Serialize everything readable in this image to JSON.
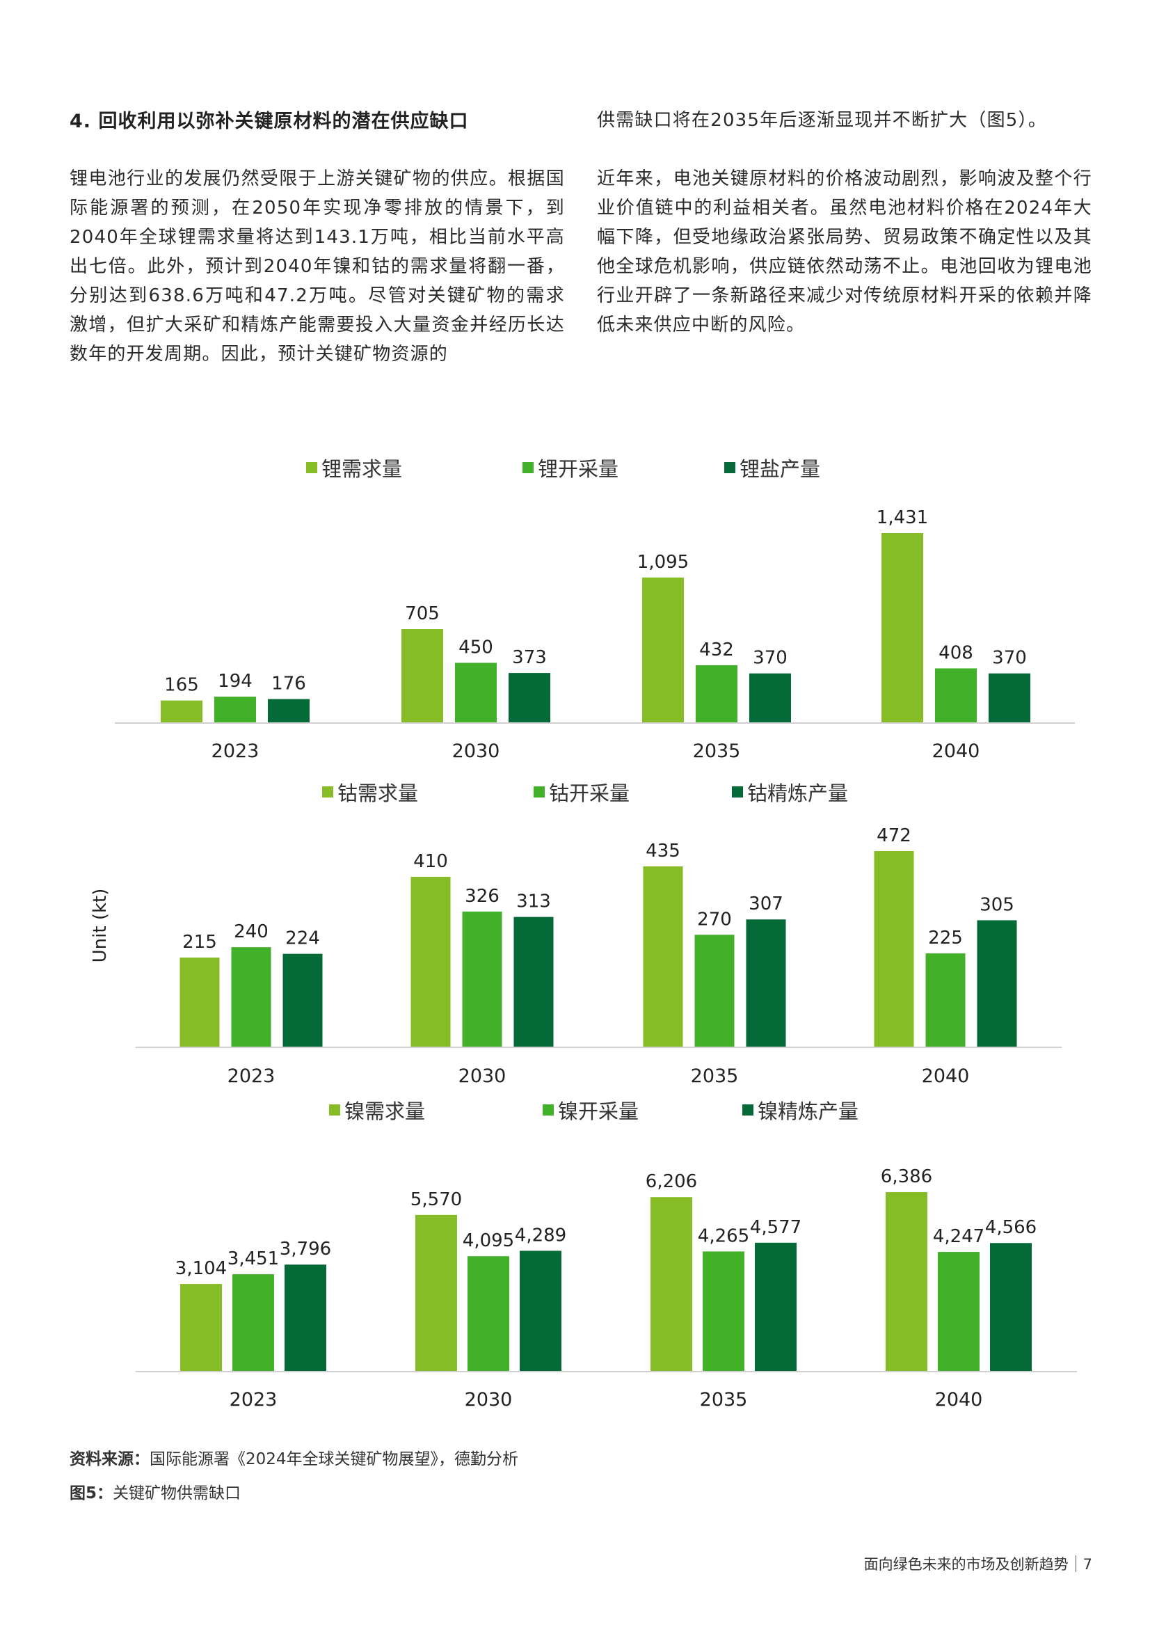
{
  "section": {
    "heading": "4. 回收利用以弥补关键原材料的潜在供应缺口",
    "left_paragraph": "锂电池行业的发展仍然受限于上游关键矿物的供应。根据国际能源署的预测，在2050年实现净零排放的情景下，到2040年全球锂需求量将达到143.1万吨，相比当前水平高出七倍。此外，预计到2040年镍和钴的需求量将翻一番，分别达到638.6万吨和47.2万吨。尽管对关键矿物的需求激增，但扩大采矿和精炼产能需要投入大量资金并经历长达数年的开发周期。因此，预计关键矿物资源的",
    "right_continuation": "供需缺口将在2035年后逐渐显现并不断扩大（图5）。",
    "right_paragraph": "近年来，电池关键原材料的价格波动剧烈，影响波及整个行业价值链中的利益相关者。虽然电池材料价格在2024年大幅下降，但受地缘政治紧张局势、贸易政策不确定性以及其他全球危机影响，供应链依然动荡不止。电池回收为锂电池行业开辟了一条新路径来减少对传统原材料开采的依赖并降低未来供应中断的风险。"
  },
  "colors": {
    "demand": "#86bc25",
    "mining": "#43b02a",
    "refining": "#046a38",
    "axis": "#d0d0d0"
  },
  "chart_data": [
    {
      "type": "bar",
      "categories": [
        "2023",
        "2030",
        "2035",
        "2040"
      ],
      "series": [
        {
          "name": "锂需求量",
          "values": [
            165,
            705,
            1095,
            1431
          ]
        },
        {
          "name": "锂开采量",
          "values": [
            194,
            450,
            432,
            408
          ]
        },
        {
          "name": "锂盐产量",
          "values": [
            176,
            373,
            370,
            370
          ]
        }
      ],
      "legend": "top"
    },
    {
      "type": "bar",
      "ylabel": "Unit (kt)",
      "categories": [
        "2023",
        "2030",
        "2035",
        "2040"
      ],
      "series": [
        {
          "name": "钴需求量",
          "values": [
            215,
            410,
            435,
            472
          ]
        },
        {
          "name": "钴开采量",
          "values": [
            240,
            326,
            270,
            225
          ]
        },
        {
          "name": "钴精炼产量",
          "values": [
            224,
            313,
            307,
            305
          ]
        }
      ],
      "legend": "top"
    },
    {
      "type": "bar",
      "categories": [
        "2023",
        "2030",
        "2035",
        "2040"
      ],
      "series": [
        {
          "name": "镍需求量",
          "values": [
            3104,
            5570,
            6206,
            6386
          ]
        },
        {
          "name": "镍开采量",
          "values": [
            3451,
            4095,
            4265,
            4247
          ]
        },
        {
          "name": "镍精炼产量",
          "values": [
            3796,
            4289,
            4577,
            4566
          ]
        }
      ],
      "legend": "top"
    }
  ],
  "source": {
    "label": "资料来源：",
    "text": "国际能源署《2024年全球关键矿物展望》，德勤分析"
  },
  "caption": {
    "label": "图5：",
    "text": "关键矿物供需缺口"
  },
  "footer": {
    "title": "面向绿色未来的市场及创新趋势",
    "page": "7"
  }
}
